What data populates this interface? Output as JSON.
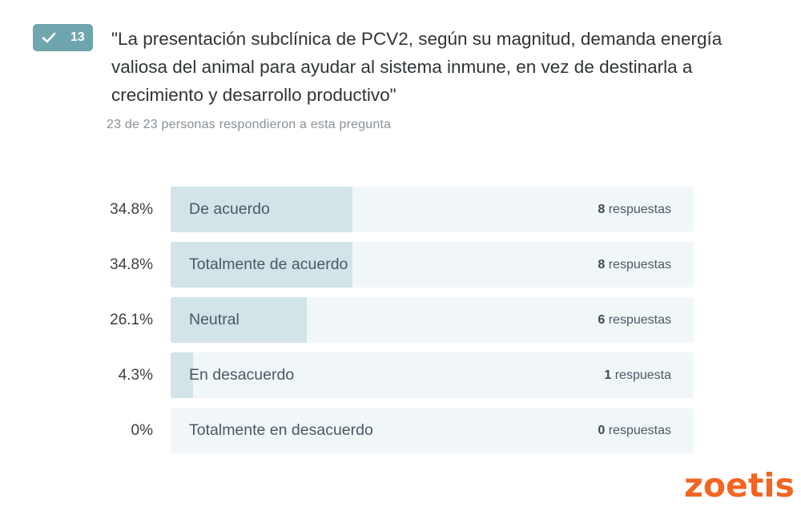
{
  "question": {
    "number": "13",
    "text": "\"La presentación subclínica de PCV2, según su magnitud, demanda energía valiosa del animal para ayudar al sistema inmune, en vez de destinarla a crecimiento y desarrollo productivo\"",
    "responses_summary": "23 de 23 personas respondieron a esta pregunta"
  },
  "chart_data": {
    "type": "bar",
    "orientation": "horizontal",
    "categories": [
      "De acuerdo",
      "Totalmente de acuerdo",
      "Neutral",
      "En desacuerdo",
      "Totalmente en desacuerdo"
    ],
    "values": [
      34.8,
      34.8,
      26.1,
      4.3,
      0
    ],
    "percent_labels": [
      "34.8%",
      "34.8%",
      "26.1%",
      "4.3%",
      "0%"
    ],
    "counts": [
      "8",
      "8",
      "6",
      "1",
      "0"
    ],
    "count_suffixes": [
      "respuestas",
      "respuestas",
      "respuestas",
      "respuesta",
      "respuestas"
    ],
    "xlim": [
      0,
      100
    ]
  },
  "brand": {
    "logo_text": "zoetis",
    "logo_color": "#f26522"
  },
  "colors": {
    "badge": "#6fa6ad",
    "bar_fill": "#d2e4e8",
    "bar_track": "#f1f7f8"
  }
}
